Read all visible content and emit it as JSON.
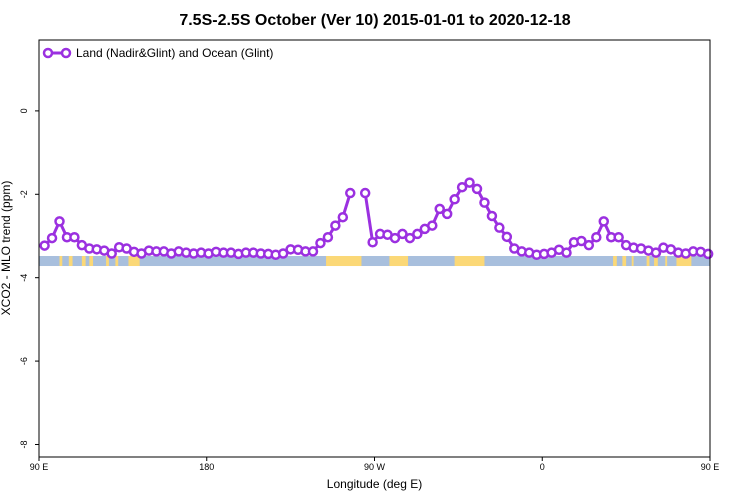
{
  "chart_data": {
    "type": "line",
    "title": "7.5S-2.5S October (Ver 10)   2015-01-01 to 2020-12-18",
    "xlabel": "Longitude (deg E)",
    "ylabel": "XCO2 - MLO trend (ppm)",
    "xlim": [
      90,
      450
    ],
    "ylim": [
      -8.3,
      1.7
    ],
    "x_ticks": [
      {
        "value": 90,
        "label": "90 E"
      },
      {
        "value": 180,
        "label": "180"
      },
      {
        "value": 270,
        "label": "90 W"
      },
      {
        "value": 360,
        "label": "0"
      },
      {
        "value": 450,
        "label": "90 E"
      },
      {
        "value": 540,
        "label": "180"
      }
    ],
    "y_ticks": [
      0,
      -2,
      -4,
      -6,
      -8
    ],
    "legend": {
      "position": "top-left"
    },
    "series": [
      {
        "name": "Land (Nadir&Glint) and Ocean (Glint)",
        "color": "#9b30e0",
        "points": [
          [
            93,
            -3.23
          ],
          [
            97,
            -3.05
          ],
          [
            101,
            -2.65
          ],
          [
            105,
            -3.03
          ],
          [
            109,
            -3.03
          ],
          [
            113,
            -3.22
          ],
          [
            117,
            -3.3
          ],
          [
            121,
            -3.32
          ],
          [
            125,
            -3.35
          ],
          [
            129,
            -3.42
          ],
          [
            133,
            -3.27
          ],
          [
            137,
            -3.3
          ],
          [
            141,
            -3.38
          ],
          [
            145,
            -3.42
          ],
          [
            149,
            -3.35
          ],
          [
            153,
            -3.37
          ],
          [
            157,
            -3.37
          ],
          [
            161,
            -3.42
          ],
          [
            165,
            -3.37
          ],
          [
            169,
            -3.4
          ],
          [
            173,
            -3.42
          ],
          [
            177,
            -3.4
          ],
          [
            181,
            -3.42
          ],
          [
            185,
            -3.38
          ],
          [
            189,
            -3.4
          ],
          [
            193,
            -3.4
          ],
          [
            197,
            -3.43
          ],
          [
            201,
            -3.4
          ],
          [
            205,
            -3.4
          ],
          [
            209,
            -3.42
          ],
          [
            213,
            -3.43
          ],
          [
            217,
            -3.45
          ],
          [
            221,
            -3.42
          ],
          [
            225,
            -3.32
          ],
          [
            229,
            -3.33
          ],
          [
            233,
            -3.37
          ],
          [
            237,
            -3.37
          ],
          [
            241,
            -3.17
          ],
          [
            245,
            -3.03
          ],
          [
            249,
            -2.75
          ],
          [
            253,
            -2.55
          ],
          [
            257,
            -1.97
          ],
          [
            265,
            -1.97
          ],
          [
            269,
            -3.15
          ],
          [
            273,
            -2.95
          ],
          [
            277,
            -2.97
          ],
          [
            281,
            -3.05
          ],
          [
            285,
            -2.95
          ],
          [
            289,
            -3.05
          ],
          [
            293,
            -2.95
          ],
          [
            297,
            -2.83
          ],
          [
            301,
            -2.75
          ],
          [
            305,
            -2.35
          ],
          [
            309,
            -2.47
          ],
          [
            313,
            -2.12
          ],
          [
            317,
            -1.83
          ],
          [
            321,
            -1.72
          ],
          [
            325,
            -1.87
          ],
          [
            329,
            -2.2
          ],
          [
            333,
            -2.52
          ],
          [
            337,
            -2.8
          ],
          [
            341,
            -3.02
          ],
          [
            345,
            -3.3
          ],
          [
            349,
            -3.37
          ],
          [
            353,
            -3.4
          ],
          [
            357,
            -3.45
          ],
          [
            361,
            -3.43
          ],
          [
            365,
            -3.4
          ],
          [
            369,
            -3.33
          ],
          [
            373,
            -3.4
          ],
          [
            377,
            -3.15
          ],
          [
            381,
            -3.12
          ],
          [
            385,
            -3.22
          ],
          [
            389,
            -3.03
          ],
          [
            393,
            -2.65
          ],
          [
            397,
            -3.03
          ],
          [
            401,
            -3.03
          ],
          [
            405,
            -3.22
          ],
          [
            409,
            -3.28
          ],
          [
            413,
            -3.3
          ],
          [
            417,
            -3.35
          ],
          [
            421,
            -3.4
          ],
          [
            425,
            -3.28
          ],
          [
            429,
            -3.32
          ],
          [
            433,
            -3.4
          ],
          [
            437,
            -3.42
          ],
          [
            441,
            -3.37
          ],
          [
            445,
            -3.38
          ],
          [
            449,
            -3.43
          ]
        ]
      }
    ],
    "surface_band": {
      "y_range": [
        -3.48,
        -3.72
      ],
      "ocean_color": "#a8bfdd",
      "land_color": "#fbd877",
      "land_segments": [
        [
          101,
          102.5
        ],
        [
          106,
          108
        ],
        [
          113,
          115
        ],
        [
          117,
          119
        ],
        [
          126,
          127.5
        ],
        [
          131,
          132.5
        ],
        [
          138,
          144
        ],
        [
          244,
          263
        ],
        [
          278,
          288
        ],
        [
          313,
          329
        ],
        [
          398,
          400
        ],
        [
          403,
          405
        ],
        [
          408,
          409
        ],
        [
          416,
          417.5
        ],
        [
          420,
          422
        ],
        [
          426,
          427
        ],
        [
          432,
          440
        ]
      ]
    }
  }
}
